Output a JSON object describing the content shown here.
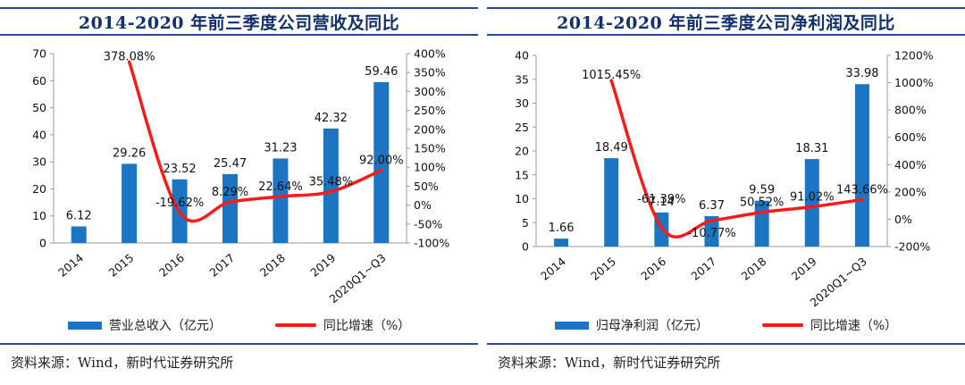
{
  "source_text": "资料来源：Wind，新时代证券研究所",
  "chart_data": [
    {
      "type": "bar",
      "title": "2014-2020 年前三季度公司营收及同比",
      "categories": [
        "2014",
        "2015",
        "2016",
        "2017",
        "2018",
        "2019",
        "2020Q1~Q3"
      ],
      "series": [
        {
          "name": "营业总收入（亿元）",
          "type": "bar",
          "axis": "left",
          "values": [
            6.12,
            29.26,
            23.52,
            25.47,
            31.23,
            42.32,
            59.46
          ],
          "labels": [
            "6.12",
            "29.26",
            "23.52",
            "25.47",
            "31.23",
            "42.32",
            "59.46"
          ]
        },
        {
          "name": "同比增速（%）",
          "type": "line",
          "axis": "right",
          "values": [
            null,
            378.08,
            -19.62,
            8.29,
            22.64,
            35.48,
            92.0
          ],
          "labels": [
            "",
            "378.08%",
            "-19.62%",
            "8.29%",
            "22.64%",
            "35.48%",
            "92.00%"
          ]
        }
      ],
      "y_left": {
        "min": 0,
        "max": 70,
        "step": 10
      },
      "y_right": {
        "min": -100,
        "max": 400,
        "step": 50
      },
      "colors": {
        "bar": "#1b75c2",
        "line": "#ff1a1a"
      },
      "legend_position": "bottom",
      "grid": false
    },
    {
      "type": "bar",
      "title": "2014-2020 年前三季度公司净利润及同比",
      "categories": [
        "2014",
        "2015",
        "2016",
        "2017",
        "2018",
        "2019",
        "2020Q1~Q3"
      ],
      "series": [
        {
          "name": "归母净利润（亿元）",
          "type": "bar",
          "axis": "left",
          "values": [
            1.66,
            18.49,
            7.14,
            6.37,
            9.59,
            18.31,
            33.98
          ],
          "labels": [
            "1.66",
            "18.49",
            "7.14",
            "6.37",
            "9.59",
            "18.31",
            "33.98"
          ]
        },
        {
          "name": "同比增速（%）",
          "type": "line",
          "axis": "right",
          "values": [
            null,
            1015.45,
            -61.39,
            -10.77,
            50.52,
            91.02,
            143.66
          ],
          "labels": [
            "",
            "1015.45%",
            "-61.39%",
            "-10.77%",
            "50.52%",
            "91.02%",
            "143.66%"
          ]
        }
      ],
      "y_left": {
        "min": 0,
        "max": 40,
        "step": 5
      },
      "y_right": {
        "min": -200,
        "max": 1200,
        "step": 200
      },
      "colors": {
        "bar": "#1b75c2",
        "line": "#ff1a1a"
      },
      "legend_position": "bottom",
      "grid": false
    }
  ]
}
